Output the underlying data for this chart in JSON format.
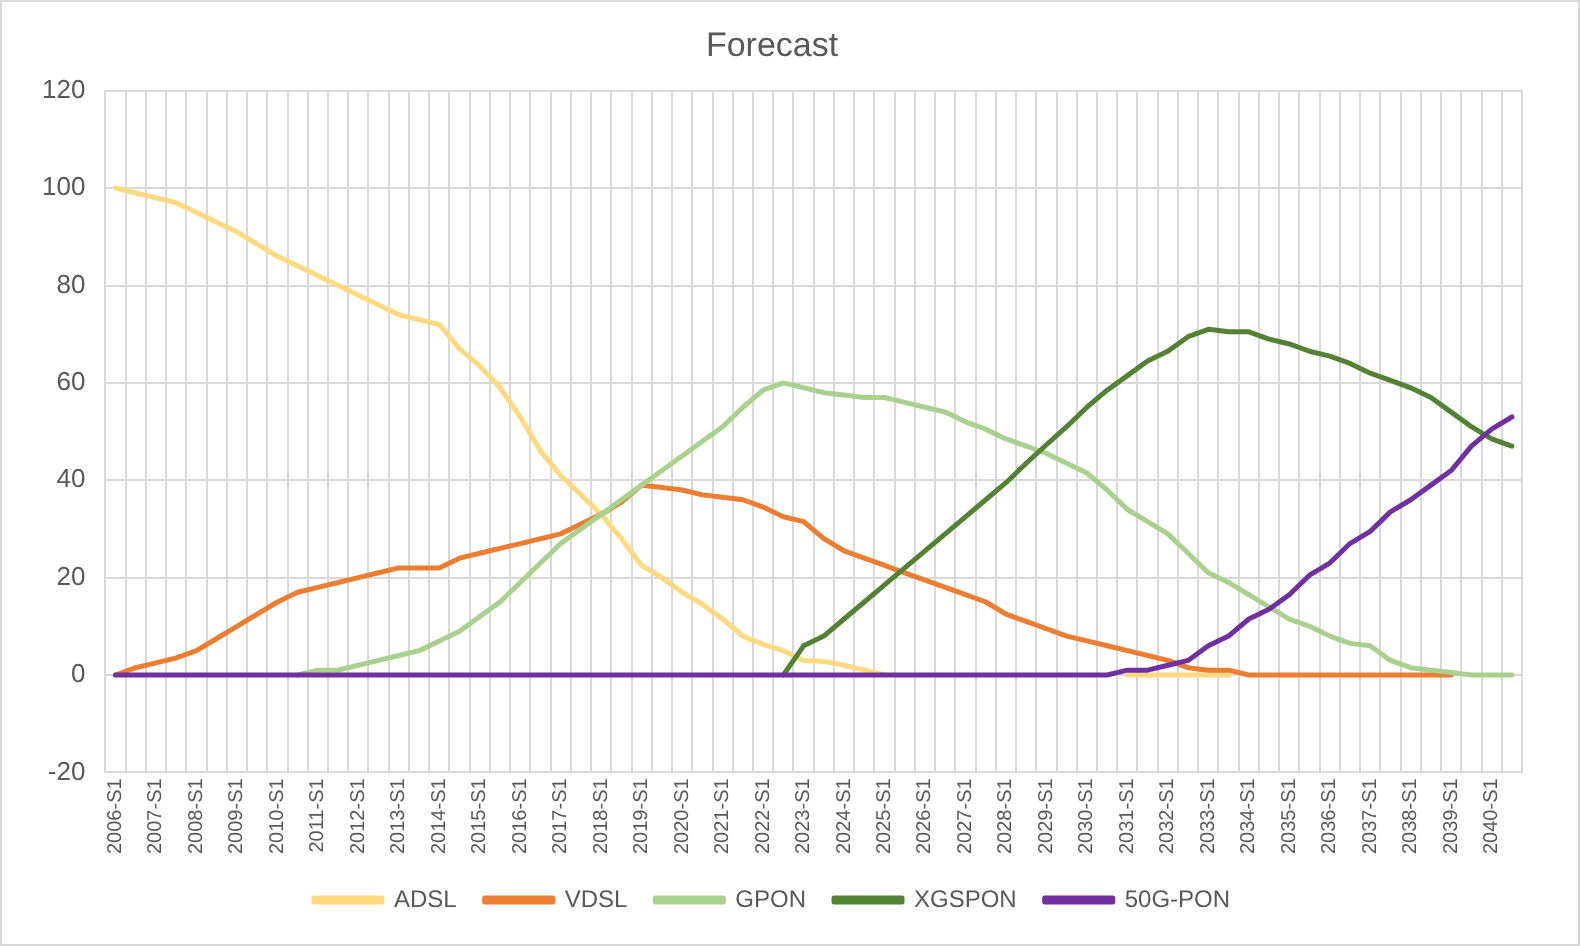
{
  "chart_data": {
    "type": "line",
    "title": "Forecast",
    "categories": [
      "2006-S1",
      null,
      "2007-S1",
      null,
      "2008-S1",
      null,
      "2009-S1",
      null,
      "2010-S1",
      null,
      "2011-S1",
      null,
      "2012-S1",
      null,
      "2013-S1",
      null,
      "2014-S1",
      null,
      "2015-S1",
      null,
      "2016-S1",
      null,
      "2017-S1",
      null,
      "2018-S1",
      null,
      "2019-S1",
      null,
      "2020-S1",
      null,
      "2021-S1",
      null,
      "2022-S1",
      null,
      "2023-S1",
      null,
      "2024-S1",
      null,
      "2025-S1",
      null,
      "2026-S1",
      null,
      "2027-S1",
      null,
      "2028-S1",
      null,
      "2029-S1",
      null,
      "2030-S1",
      null,
      "2031-S1",
      null,
      "2032-S1",
      null,
      "2033-S1",
      null,
      "2034-S1",
      null,
      "2035-S1",
      null,
      "2036-S1",
      null,
      "2037-S1",
      null,
      "2038-S1",
      null,
      "2039-S1",
      null,
      "2040-S1",
      null
    ],
    "series": [
      {
        "name": "ADSL",
        "color": "#ffd97f",
        "values": [
          100,
          99,
          98,
          97,
          95,
          93,
          91,
          88.5,
          86,
          84,
          82,
          80,
          78,
          76,
          74,
          73,
          72,
          67,
          63.5,
          59,
          53,
          46,
          41,
          37,
          33,
          28,
          22.5,
          20,
          17,
          14.5,
          11.5,
          8,
          6.3,
          5,
          3,
          2.8,
          2,
          1,
          0,
          null,
          null,
          null,
          null,
          null,
          null,
          null,
          null,
          null,
          null,
          null,
          0,
          0,
          0,
          0,
          0,
          0,
          null,
          null,
          null,
          null,
          null,
          null,
          null,
          null,
          null,
          null,
          null,
          null,
          null,
          null
        ]
      },
      {
        "name": "VDSL",
        "color": "#ed7d31",
        "values": [
          0,
          1.5,
          2.5,
          3.5,
          5,
          7.5,
          10,
          12.5,
          15,
          17,
          18,
          19,
          20,
          21,
          22,
          22,
          22,
          24,
          25,
          26,
          27,
          28,
          29,
          31,
          33,
          35.5,
          39,
          38.5,
          38,
          37,
          36.5,
          36,
          34.5,
          32.5,
          31.5,
          28,
          25.5,
          24,
          22.5,
          21,
          19.5,
          18,
          16.5,
          15,
          12.5,
          11,
          9.5,
          8,
          7,
          6,
          5,
          4,
          3,
          1.5,
          1,
          1,
          0,
          0,
          0,
          0,
          0,
          0,
          0,
          0,
          0,
          0,
          0,
          null,
          null,
          null
        ]
      },
      {
        "name": "GPON",
        "color": "#a9d18e",
        "values": [
          null,
          null,
          null,
          null,
          null,
          null,
          null,
          null,
          null,
          0,
          1,
          1,
          2,
          3,
          4,
          5,
          7,
          9,
          12,
          15,
          19,
          23,
          27,
          30,
          33,
          36,
          39,
          42,
          45,
          48,
          51,
          55,
          58.5,
          60,
          59,
          58,
          57.5,
          57,
          57,
          56,
          55,
          54,
          52,
          50.5,
          48.5,
          47,
          45.5,
          43.5,
          41.5,
          38,
          34,
          31.5,
          29,
          25,
          21,
          19,
          16.5,
          14,
          11.5,
          10,
          8,
          6.5,
          6,
          3,
          1.5,
          1,
          0.5,
          0,
          0,
          0
        ]
      },
      {
        "name": "XGSPON",
        "color": "#548235",
        "values": [
          null,
          null,
          null,
          null,
          null,
          null,
          null,
          null,
          null,
          null,
          null,
          null,
          null,
          null,
          null,
          null,
          null,
          null,
          null,
          null,
          null,
          null,
          null,
          null,
          null,
          null,
          null,
          null,
          null,
          null,
          null,
          null,
          null,
          0,
          6,
          8,
          11.5,
          15,
          18.5,
          22,
          25.5,
          29,
          32.5,
          36,
          39.5,
          43.5,
          47.3,
          51,
          55,
          58.5,
          61.5,
          64.5,
          66.5,
          69.5,
          71,
          70.5,
          70.5,
          69,
          68,
          66.5,
          65.5,
          64,
          62,
          60.5,
          59,
          57,
          54,
          51,
          48.5,
          47
        ]
      },
      {
        "name": "50G-PON",
        "color": "#7030a0",
        "values": [
          0,
          0,
          0,
          0,
          0,
          0,
          0,
          0,
          0,
          0,
          0,
          0,
          0,
          0,
          0,
          0,
          0,
          0,
          0,
          0,
          0,
          0,
          0,
          0,
          0,
          0,
          0,
          0,
          0,
          0,
          0,
          0,
          0,
          0,
          0,
          0,
          0,
          0,
          0,
          0,
          0,
          0,
          0,
          0,
          0,
          0,
          0,
          0,
          0,
          0,
          1,
          1,
          2,
          3,
          6,
          8,
          11.5,
          13.5,
          16.5,
          20.5,
          23,
          27,
          29.5,
          33.5,
          36,
          39,
          42,
          47,
          50.5,
          53
        ]
      }
    ],
    "ylim": [
      -20,
      120
    ],
    "yticks": [
      -20,
      0,
      20,
      40,
      60,
      80,
      100,
      120
    ],
    "grid": true,
    "legend": "bottom",
    "marker": "none",
    "line_style": "solid"
  }
}
